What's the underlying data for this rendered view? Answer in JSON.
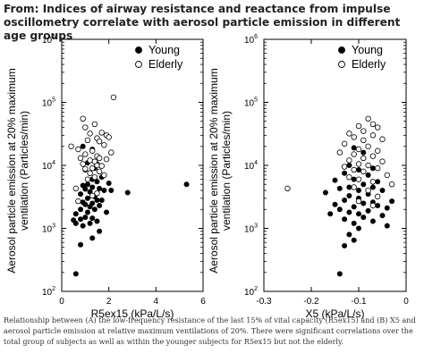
{
  "header": {
    "title": "From: Indices of airway resistance and reactance from impulse oscillometry correlate with aerosol particle emission in different age groups"
  },
  "caption": {
    "text": "Relationship between (A) the low-frequency resistance of the last 15% of vital capacity (R5ex15) and (B) X5 and aerosol particle emission at relative maximum ventilations of 20%. There were significant correlations over the total group of subjects as well as within the younger subjects for R5ex15 but not the elderly."
  },
  "colors": {
    "young": "#000000",
    "elderly_stroke": "#000000",
    "elderly_fill": "#ffffff"
  },
  "chart_data": [
    {
      "type": "scatter",
      "xlabel": "R5ex15 (kPa/L/s)",
      "ylabel": "Aerosol particle emission at 20% maximum ventilation (Particles/min)",
      "ylabel_lines": [
        "Aerosol particle emission at 20% maximum",
        "ventilation (Particles/min)"
      ],
      "xlim": [
        0,
        6
      ],
      "ylim": [
        100,
        1000000
      ],
      "y_scale": "log",
      "x_ticks": [
        "0",
        "2",
        "4",
        "6"
      ],
      "y_ticks": [
        100,
        1000,
        10000,
        100000,
        1000000
      ],
      "legend": {
        "position": "top-right",
        "entries": [
          "Young",
          "Elderly"
        ]
      },
      "series": [
        {
          "name": "Young",
          "marker": "filled-circle",
          "points": [
            [
              0.9,
              20000
            ],
            [
              1.3,
              18000
            ],
            [
              1.1,
              11000
            ],
            [
              1.5,
              10500
            ],
            [
              1.4,
              9000
            ],
            [
              1.0,
              8500
            ],
            [
              1.6,
              8000
            ],
            [
              1.2,
              7500
            ],
            [
              1.3,
              6000
            ],
            [
              1.7,
              6500
            ],
            [
              1.5,
              5500
            ],
            [
              1.1,
              5000
            ],
            [
              2.0,
              5200
            ],
            [
              0.9,
              4800
            ],
            [
              1.3,
              4500
            ],
            [
              1.0,
              4200
            ],
            [
              1.6,
              4300
            ],
            [
              1.8,
              4000
            ],
            [
              1.2,
              3800
            ],
            [
              2.8,
              3700
            ],
            [
              0.8,
              3500
            ],
            [
              1.4,
              3200
            ],
            [
              1.1,
              3000
            ],
            [
              1.5,
              2800
            ],
            [
              1.7,
              2800
            ],
            [
              0.9,
              2600
            ],
            [
              1.3,
              2500
            ],
            [
              1.0,
              2400
            ],
            [
              1.6,
              2300
            ],
            [
              1.2,
              2200
            ],
            [
              0.8,
              2000
            ],
            [
              1.4,
              2000
            ],
            [
              1.1,
              1800
            ],
            [
              1.9,
              1800
            ],
            [
              0.6,
              1700
            ],
            [
              1.0,
              1500
            ],
            [
              1.3,
              1450
            ],
            [
              0.5,
              1350
            ],
            [
              0.8,
              1400
            ],
            [
              1.5,
              1300
            ],
            [
              0.6,
              1200
            ],
            [
              1.2,
              1200
            ],
            [
              0.9,
              1100
            ],
            [
              1.6,
              900
            ],
            [
              1.3,
              700
            ],
            [
              0.8,
              550
            ],
            [
              0.6,
              190
            ],
            [
              5.3,
              5000
            ],
            [
              2.1,
              4000
            ]
          ]
        },
        {
          "name": "Elderly",
          "marker": "open-circle",
          "points": [
            [
              2.2,
              120000
            ],
            [
              0.9,
              55000
            ],
            [
              1.4,
              45000
            ],
            [
              1.0,
              40000
            ],
            [
              1.7,
              33000
            ],
            [
              1.2,
              32000
            ],
            [
              1.9,
              30000
            ],
            [
              2.0,
              28000
            ],
            [
              1.5,
              27000
            ],
            [
              1.1,
              25000
            ],
            [
              1.6,
              24000
            ],
            [
              0.4,
              20000
            ],
            [
              1.8,
              21000
            ],
            [
              0.7,
              18000
            ],
            [
              1.3,
              17000
            ],
            [
              2.1,
              16000
            ],
            [
              1.0,
              15000
            ],
            [
              1.5,
              14000
            ],
            [
              0.8,
              13000
            ],
            [
              1.6,
              13000
            ],
            [
              1.2,
              12000
            ],
            [
              1.9,
              12500
            ],
            [
              1.4,
              11500
            ],
            [
              0.9,
              10500
            ],
            [
              1.5,
              10000
            ],
            [
              1.7,
              9800
            ],
            [
              1.3,
              9000
            ],
            [
              1.0,
              8800
            ],
            [
              1.6,
              8000
            ],
            [
              1.2,
              7500
            ],
            [
              1.8,
              7000
            ],
            [
              1.4,
              6500
            ],
            [
              1.1,
              6000
            ],
            [
              0.6,
              4300
            ],
            [
              1.5,
              3600
            ],
            [
              1.3,
              3300
            ],
            [
              0.7,
              2700
            ]
          ]
        }
      ]
    },
    {
      "type": "scatter",
      "xlabel": "X5 (kPa/L/s)",
      "ylabel": "Aerosol particle emission at 20% maximum ventilation (Particles/min)",
      "ylabel_lines": [
        "Aerosol particle emission at 20% maximum",
        "ventilation (Particles/min)"
      ],
      "xlim": [
        -0.3,
        0
      ],
      "ylim": [
        100,
        1000000
      ],
      "y_scale": "log",
      "x_ticks": [
        "-0.3",
        "-0.2",
        "-0.1",
        "0"
      ],
      "y_ticks": [
        100,
        1000,
        10000,
        100000,
        1000000
      ],
      "legend": {
        "position": "top-right",
        "entries": [
          "Young",
          "Elderly"
        ]
      },
      "series": [
        {
          "name": "Young",
          "marker": "filled-circle",
          "points": [
            [
              -0.11,
              19000
            ],
            [
              -0.09,
              16000
            ],
            [
              -0.12,
              10000
            ],
            [
              -0.07,
              9000
            ],
            [
              -0.1,
              8500
            ],
            [
              -0.13,
              7500
            ],
            [
              -0.08,
              7000
            ],
            [
              -0.11,
              6000
            ],
            [
              -0.15,
              5800
            ],
            [
              -0.06,
              5500
            ],
            [
              -0.09,
              5000
            ],
            [
              -0.12,
              4500
            ],
            [
              -0.07,
              4500
            ],
            [
              -0.14,
              4300
            ],
            [
              -0.1,
              4000
            ],
            [
              -0.05,
              4000
            ],
            [
              -0.17,
              3700
            ],
            [
              -0.08,
              3500
            ],
            [
              -0.12,
              3300
            ],
            [
              -0.03,
              2700
            ],
            [
              -0.1,
              3000
            ],
            [
              -0.13,
              2800
            ],
            [
              -0.07,
              2600
            ],
            [
              -0.09,
              2500
            ],
            [
              -0.15,
              2400
            ],
            [
              -0.06,
              2300
            ],
            [
              -0.11,
              2200
            ],
            [
              -0.04,
              2100
            ],
            [
              -0.14,
              2000
            ],
            [
              -0.08,
              1900
            ],
            [
              -0.12,
              1800
            ],
            [
              -0.16,
              1700
            ],
            [
              -0.1,
              1700
            ],
            [
              -0.05,
              1600
            ],
            [
              -0.09,
              1500
            ],
            [
              -0.13,
              1400
            ],
            [
              -0.07,
              1300
            ],
            [
              -0.11,
              1200
            ],
            [
              -0.04,
              1100
            ],
            [
              -0.1,
              1000
            ],
            [
              -0.12,
              800
            ],
            [
              -0.11,
              650
            ],
            [
              -0.13,
              530
            ],
            [
              -0.14,
              190
            ]
          ]
        },
        {
          "name": "Elderly",
          "marker": "open-circle",
          "points": [
            [
              -0.08,
              55000
            ],
            [
              -0.07,
              45000
            ],
            [
              -0.1,
              42000
            ],
            [
              -0.06,
              40000
            ],
            [
              -0.09,
              35000
            ],
            [
              -0.12,
              32000
            ],
            [
              -0.07,
              30000
            ],
            [
              -0.11,
              28000
            ],
            [
              -0.05,
              26000
            ],
            [
              -0.09,
              25000
            ],
            [
              -0.13,
              22000
            ],
            [
              -0.08,
              20000
            ],
            [
              -0.1,
              18000
            ],
            [
              -0.06,
              17000
            ],
            [
              -0.14,
              16000
            ],
            [
              -0.11,
              15000
            ],
            [
              -0.07,
              14000
            ],
            [
              -0.09,
              13000
            ],
            [
              -0.12,
              12000
            ],
            [
              -0.05,
              11500
            ],
            [
              -0.1,
              10500
            ],
            [
              -0.08,
              10000
            ],
            [
              -0.13,
              9500
            ],
            [
              -0.06,
              9000
            ],
            [
              -0.11,
              8500
            ],
            [
              -0.09,
              8000
            ],
            [
              -0.04,
              7000
            ],
            [
              -0.12,
              6500
            ],
            [
              -0.1,
              6000
            ],
            [
              -0.07,
              5500
            ],
            [
              -0.03,
              5000
            ],
            [
              -0.11,
              4500
            ],
            [
              -0.08,
              4000
            ],
            [
              -0.25,
              4300
            ],
            [
              -0.06,
              3200
            ],
            [
              -0.1,
              2700
            ],
            [
              -0.07,
              2300
            ]
          ]
        }
      ]
    }
  ]
}
